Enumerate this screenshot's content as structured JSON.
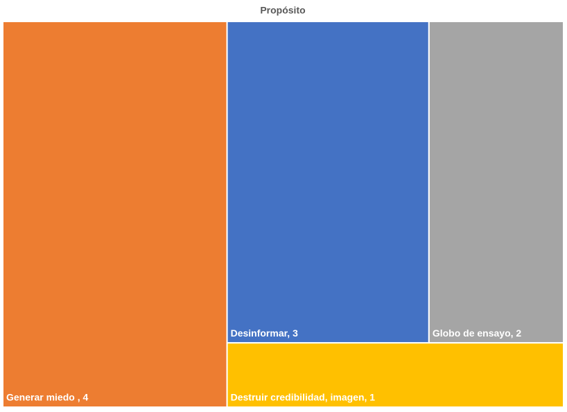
{
  "chart_data": {
    "type": "treemap",
    "title": "Propósito",
    "values": [
      4,
      3,
      2,
      1
    ],
    "value_labels": [
      "Generar miedo , 4",
      "Desinformar, 3",
      "Globo de ensayo, 2",
      "Destruir credibilidad, imagen, 1"
    ],
    "colors": [
      "#ed7d31",
      "#4472c4",
      "#a5a5a5",
      "#ffc000"
    ]
  }
}
